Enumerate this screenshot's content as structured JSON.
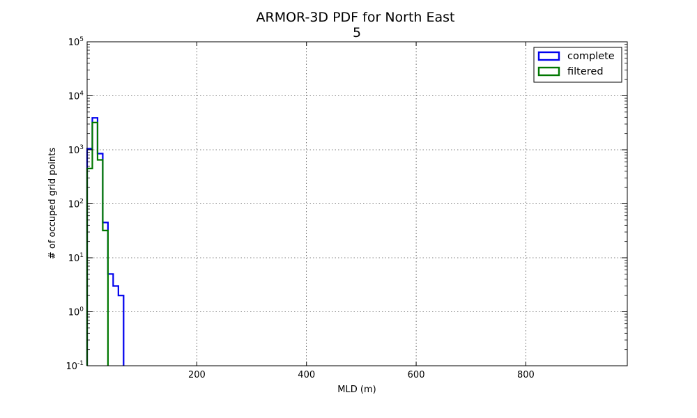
{
  "chart_data": {
    "type": "histogram",
    "title": "ARMOR-3D PDF for North East",
    "subtitle": "5",
    "xlabel": "MLD (m)",
    "ylabel": "# of occuped grid points",
    "xlim": [
      0,
      985
    ],
    "ylim": [
      0.1,
      100000
    ],
    "yscale": "log",
    "grid": true,
    "legend_position": "top-right",
    "x_ticks": [
      200,
      400,
      600,
      800
    ],
    "y_ticks": [
      {
        "value": 0.1,
        "base": "10",
        "exp": "-1"
      },
      {
        "value": 1,
        "base": "10",
        "exp": "0"
      },
      {
        "value": 10,
        "base": "10",
        "exp": "1"
      },
      {
        "value": 100,
        "base": "10",
        "exp": "2"
      },
      {
        "value": 1000,
        "base": "10",
        "exp": "3"
      },
      {
        "value": 10000,
        "base": "10",
        "exp": "4"
      },
      {
        "value": 100000,
        "base": "10",
        "exp": "5"
      }
    ],
    "bin_edges": [
      0,
      9.5,
      19,
      28.5,
      38,
      47.5,
      57,
      66.5,
      76,
      85.5
    ],
    "series": [
      {
        "name": "complete",
        "color": "#0000ee",
        "values": [
          1050,
          3900,
          850,
          45,
          5,
          3,
          2
        ]
      },
      {
        "name": "filtered",
        "color": "#007700",
        "values": [
          450,
          3200,
          650,
          32
        ]
      }
    ]
  }
}
